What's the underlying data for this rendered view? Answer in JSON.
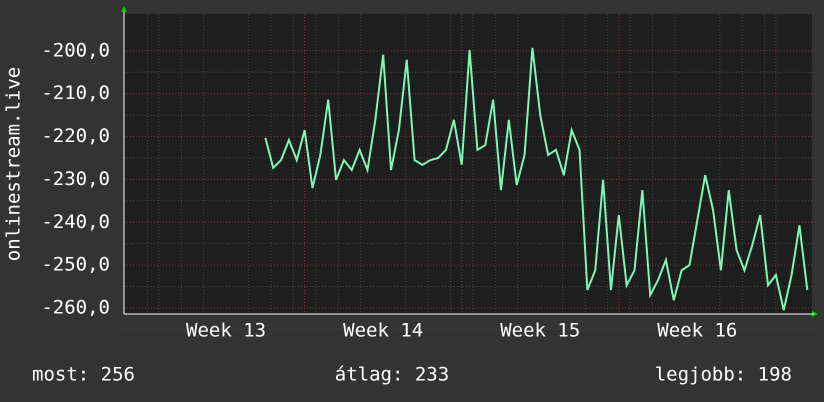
{
  "chart_data": {
    "type": "line",
    "y_label": "onlinestream.live",
    "x": [
      13.25,
      13.3,
      13.35,
      13.4,
      13.45,
      13.5,
      13.55,
      13.6,
      13.65,
      13.7,
      13.75,
      13.8,
      13.85,
      13.9,
      13.95,
      14.0,
      14.05,
      14.1,
      14.15,
      14.2,
      14.25,
      14.3,
      14.35,
      14.4,
      14.45,
      14.5,
      14.55,
      14.6,
      14.65,
      14.7,
      14.75,
      14.8,
      14.85,
      14.9,
      14.95,
      15.0,
      15.05,
      15.1,
      15.15,
      15.2,
      15.25,
      15.3,
      15.35,
      15.4,
      15.45,
      15.5,
      15.55,
      15.6,
      15.65,
      15.7,
      15.75,
      15.8,
      15.85,
      15.9,
      15.95,
      16.0,
      16.05,
      16.1,
      16.15,
      16.2,
      16.25,
      16.3,
      16.35,
      16.4,
      16.45,
      16.5,
      16.55,
      16.6,
      16.65,
      16.7
    ],
    "series": [
      {
        "color": "#80f5b8",
        "values": [
          -220.3,
          -227.3,
          -225.5,
          -220.8,
          -225.5,
          -218.5,
          -232.0,
          -224.3,
          -211.4,
          -230.1,
          -225.5,
          -227.8,
          -223.1,
          -227.8,
          -216.1,
          -200.9,
          -227.8,
          -218.5,
          -202.1,
          -225.5,
          -226.6,
          -225.5,
          -225.0,
          -223.1,
          -216.1,
          -226.6,
          -199.8,
          -223.1,
          -222.0,
          -211.4,
          -232.5,
          -216.1,
          -231.3,
          -224.3,
          -199.3,
          -215.0,
          -224.3,
          -223.1,
          -229.0,
          -218.5,
          -223.1,
          -255.8,
          -251.2,
          -230.1,
          -255.8,
          -238.3,
          -254.7,
          -251.2,
          -232.5,
          -257.0,
          -253.5,
          -248.8,
          -258.2,
          -251.2,
          -250.0,
          -239.5,
          -229.0,
          -237.1,
          -251.2,
          -232.5,
          -246.5,
          -251.2,
          -245.3,
          -238.3,
          -254.7,
          -252.3,
          -260.5,
          -252.3,
          -240.7,
          -255.8
        ]
      }
    ],
    "xlim": [
      12.35,
      16.73
    ],
    "xticks": [
      {
        "value": 13,
        "label": "Week 13"
      },
      {
        "value": 14,
        "label": "Week 14"
      },
      {
        "value": 15,
        "label": "Week 15"
      },
      {
        "value": 16,
        "label": "Week 16"
      }
    ],
    "ylim": [
      -261.4,
      -191.4
    ],
    "yticks": [
      {
        "value": -200,
        "label": "-200,0"
      },
      {
        "value": -210,
        "label": "-210,0"
      },
      {
        "value": -220,
        "label": "-220,0"
      },
      {
        "value": -230,
        "label": "-230,0"
      },
      {
        "value": -240,
        "label": "-240,0"
      },
      {
        "value": -250,
        "label": "-250,0"
      },
      {
        "value": -260,
        "label": "-260,0"
      }
    ],
    "grid": true,
    "footer": [
      "most: 256",
      "átlag: 233",
      "legjobb: 198"
    ]
  }
}
